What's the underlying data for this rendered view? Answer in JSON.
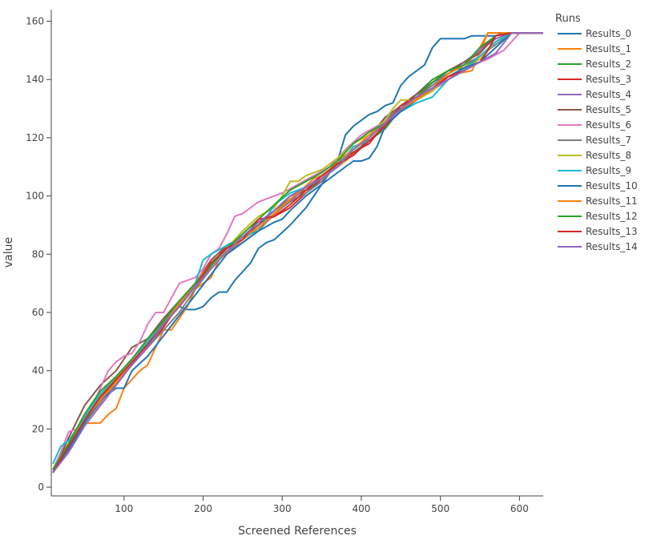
{
  "chart_data": {
    "type": "line",
    "title": "",
    "xlabel": "Screened References",
    "ylabel": "value",
    "xlim": [
      8,
      630
    ],
    "ylim": [
      -3,
      164
    ],
    "xticks": [
      100,
      200,
      300,
      400,
      500,
      600
    ],
    "yticks": [
      0,
      20,
      40,
      60,
      80,
      100,
      120,
      140,
      160
    ],
    "grid": false,
    "legend": {
      "title": "Runs",
      "placement": "right"
    },
    "series": [
      {
        "name": "Results_0",
        "color": "#1f77b4",
        "x": [
          10,
          30,
          50,
          70,
          90,
          110,
          130,
          150,
          170,
          180,
          190,
          200,
          210,
          220,
          230,
          240,
          260,
          270,
          280,
          290,
          310,
          330,
          350,
          370,
          380,
          390,
          410,
          420,
          430,
          440,
          450,
          460,
          470,
          480,
          490,
          500,
          520,
          530,
          540,
          550,
          560,
          570,
          580,
          600,
          630
        ],
        "y": [
          6,
          15,
          23,
          31,
          37,
          42,
          50,
          57,
          62,
          61,
          61,
          62,
          65,
          67,
          67,
          71,
          77,
          82,
          84,
          85,
          90,
          96,
          104,
          112,
          121,
          124,
          128,
          129,
          131,
          132,
          138,
          141,
          143,
          145,
          151,
          154,
          154,
          154,
          155,
          155,
          155,
          155,
          156,
          156,
          156
        ]
      },
      {
        "name": "Results_1",
        "color": "#ff7f0e",
        "x": [
          10,
          20,
          30,
          40,
          50,
          60,
          70,
          80,
          90,
          100,
          110,
          120,
          130,
          140,
          150,
          160,
          170,
          180,
          190,
          200,
          210,
          220,
          240,
          260,
          280,
          300,
          320,
          340,
          360,
          380,
          400,
          420,
          440,
          460,
          480,
          500,
          520,
          540,
          560,
          580,
          600,
          630
        ],
        "y": [
          6,
          10,
          15,
          18,
          22,
          22,
          22,
          25,
          27,
          34,
          37,
          40,
          42,
          48,
          54,
          54,
          58,
          62,
          68,
          70,
          72,
          78,
          83,
          87,
          91,
          96,
          101,
          106,
          108,
          112,
          117,
          121,
          127,
          132,
          135,
          138,
          142,
          143,
          156,
          156,
          156,
          156
        ]
      },
      {
        "name": "Results_2",
        "color": "#2ca02c",
        "x": [
          10,
          30,
          50,
          70,
          90,
          110,
          130,
          150,
          170,
          190,
          210,
          230,
          250,
          270,
          290,
          310,
          330,
          350,
          370,
          390,
          410,
          430,
          450,
          470,
          490,
          510,
          530,
          550,
          570,
          590,
          630
        ],
        "y": [
          6,
          14,
          22,
          30,
          37,
          43,
          49,
          56,
          62,
          69,
          76,
          83,
          86,
          90,
          95,
          99,
          102,
          106,
          112,
          115,
          119,
          123,
          130,
          135,
          140,
          143,
          144,
          148,
          153,
          156,
          156
        ]
      },
      {
        "name": "Results_3",
        "color": "#d62728",
        "x": [
          10,
          30,
          50,
          70,
          90,
          110,
          130,
          150,
          170,
          190,
          210,
          230,
          250,
          270,
          290,
          310,
          330,
          350,
          370,
          390,
          410,
          430,
          450,
          470,
          490,
          510,
          530,
          550,
          570,
          590,
          630
        ],
        "y": [
          5,
          14,
          23,
          31,
          37,
          42,
          48,
          55,
          63,
          70,
          76,
          83,
          86,
          91,
          93,
          96,
          101,
          106,
          111,
          115,
          118,
          125,
          130,
          134,
          138,
          142,
          145,
          150,
          155,
          156,
          156
        ]
      },
      {
        "name": "Results_4",
        "color": "#9467bd",
        "x": [
          10,
          30,
          50,
          70,
          90,
          110,
          130,
          150,
          170,
          190,
          210,
          230,
          250,
          270,
          290,
          310,
          330,
          350,
          370,
          390,
          410,
          430,
          450,
          470,
          490,
          510,
          530,
          550,
          570,
          590,
          630
        ],
        "y": [
          6,
          13,
          23,
          30,
          35,
          43,
          49,
          56,
          62,
          69,
          77,
          82,
          86,
          89,
          94,
          98,
          103,
          107,
          111,
          116,
          120,
          125,
          131,
          135,
          139,
          142,
          146,
          150,
          154,
          156,
          156
        ]
      },
      {
        "name": "Results_5",
        "color": "#8c564b",
        "x": [
          10,
          30,
          50,
          70,
          90,
          110,
          130,
          150,
          170,
          190,
          210,
          230,
          250,
          270,
          290,
          310,
          330,
          350,
          370,
          390,
          410,
          430,
          450,
          470,
          490,
          510,
          530,
          550,
          570,
          590,
          630
        ],
        "y": [
          5,
          17,
          28,
          35,
          40,
          48,
          51,
          58,
          64,
          70,
          78,
          83,
          86,
          90,
          95,
          100,
          102,
          105,
          111,
          114,
          120,
          127,
          131,
          135,
          139,
          143,
          146,
          149,
          155,
          156,
          156
        ]
      },
      {
        "name": "Results_6",
        "color": "#e377c2",
        "x": [
          10,
          20,
          30,
          40,
          50,
          60,
          70,
          80,
          90,
          100,
          110,
          120,
          130,
          140,
          150,
          160,
          170,
          180,
          190,
          200,
          210,
          220,
          230,
          240,
          250,
          260,
          270,
          280,
          290,
          300,
          320,
          340,
          360,
          380,
          400,
          420,
          440,
          460,
          480,
          500,
          520,
          540,
          560,
          580,
          600,
          630
        ],
        "y": [
          6,
          12,
          19,
          20,
          23,
          28,
          34,
          40,
          43,
          45,
          46,
          50,
          56,
          60,
          60,
          65,
          70,
          71,
          72,
          75,
          80,
          82,
          87,
          93,
          94,
          96,
          98,
          99,
          100,
          101,
          104,
          107,
          110,
          116,
          121,
          124,
          127,
          131,
          135,
          138,
          142,
          145,
          147,
          150,
          156,
          156
        ]
      },
      {
        "name": "Results_7",
        "color": "#7f7f7f",
        "x": [
          10,
          30,
          50,
          70,
          90,
          110,
          130,
          150,
          170,
          190,
          210,
          230,
          250,
          270,
          290,
          310,
          330,
          350,
          370,
          390,
          410,
          430,
          450,
          470,
          490,
          510,
          530,
          550,
          570,
          590,
          630
        ],
        "y": [
          5,
          14,
          22,
          29,
          36,
          42,
          48,
          54,
          60,
          68,
          75,
          81,
          84,
          88,
          94,
          98,
          101,
          105,
          111,
          116,
          120,
          126,
          131,
          134,
          138,
          142,
          145,
          148,
          152,
          156,
          156
        ]
      },
      {
        "name": "Results_8",
        "color": "#bcbd22",
        "x": [
          10,
          30,
          50,
          70,
          90,
          110,
          130,
          150,
          170,
          190,
          210,
          230,
          250,
          270,
          290,
          300,
          310,
          320,
          330,
          350,
          370,
          390,
          410,
          430,
          440,
          450,
          470,
          490,
          510,
          530,
          550,
          570,
          590,
          630
        ],
        "y": [
          6,
          15,
          24,
          31,
          38,
          44,
          50,
          57,
          63,
          70,
          76,
          82,
          88,
          93,
          96,
          100,
          105,
          105,
          107,
          109,
          113,
          118,
          121,
          126,
          130,
          133,
          133,
          136,
          141,
          144,
          147,
          153,
          156,
          156
        ]
      },
      {
        "name": "Results_9",
        "color": "#17becf",
        "x": [
          10,
          20,
          30,
          50,
          70,
          90,
          110,
          130,
          150,
          170,
          190,
          200,
          210,
          230,
          250,
          270,
          290,
          310,
          330,
          350,
          370,
          390,
          410,
          430,
          450,
          470,
          490,
          510,
          530,
          550,
          570,
          590,
          630
        ],
        "y": [
          8,
          14,
          16,
          24,
          32,
          38,
          44,
          50,
          57,
          64,
          70,
          78,
          80,
          83,
          86,
          88,
          97,
          101,
          103,
          106,
          110,
          117,
          119,
          124,
          129,
          132,
          134,
          140,
          143,
          148,
          153,
          156,
          156
        ]
      },
      {
        "name": "Results_10",
        "color": "#1f77b4",
        "x": [
          10,
          30,
          50,
          70,
          90,
          100,
          110,
          130,
          150,
          170,
          190,
          210,
          230,
          250,
          270,
          290,
          300,
          310,
          330,
          350,
          370,
          390,
          400,
          410,
          420,
          430,
          450,
          470,
          490,
          510,
          530,
          550,
          570,
          590,
          630
        ],
        "y": [
          5,
          13,
          22,
          30,
          34,
          34,
          40,
          45,
          52,
          59,
          66,
          73,
          80,
          84,
          88,
          91,
          92,
          95,
          100,
          104,
          108,
          112,
          112,
          113,
          117,
          124,
          129,
          133,
          137,
          141,
          144,
          146,
          151,
          156,
          156
        ]
      },
      {
        "name": "Results_11",
        "color": "#ff7f0e",
        "x": [
          10,
          30,
          50,
          70,
          90,
          110,
          130,
          150,
          170,
          190,
          210,
          230,
          250,
          270,
          290,
          310,
          330,
          350,
          370,
          390,
          410,
          430,
          450,
          470,
          490,
          510,
          530,
          550,
          560,
          570,
          590,
          630
        ],
        "y": [
          6,
          14,
          23,
          30,
          36,
          43,
          49,
          56,
          63,
          70,
          77,
          82,
          86,
          89,
          94,
          99,
          103,
          106,
          112,
          116,
          121,
          125,
          130,
          133,
          137,
          142,
          145,
          151,
          156,
          156,
          156,
          156
        ]
      },
      {
        "name": "Results_12",
        "color": "#2ca02c",
        "x": [
          10,
          30,
          50,
          70,
          90,
          110,
          130,
          150,
          170,
          190,
          210,
          230,
          250,
          270,
          290,
          310,
          330,
          350,
          370,
          390,
          410,
          430,
          450,
          470,
          490,
          510,
          530,
          550,
          570,
          590,
          630
        ],
        "y": [
          6,
          15,
          25,
          33,
          38,
          44,
          51,
          57,
          64,
          70,
          76,
          82,
          87,
          92,
          97,
          102,
          105,
          108,
          112,
          118,
          122,
          125,
          130,
          134,
          139,
          143,
          145,
          151,
          155,
          156,
          156
        ]
      },
      {
        "name": "Results_13",
        "color": "#d62728",
        "x": [
          10,
          30,
          50,
          70,
          90,
          110,
          130,
          150,
          170,
          190,
          210,
          230,
          250,
          270,
          290,
          310,
          330,
          350,
          370,
          390,
          410,
          430,
          450,
          470,
          490,
          510,
          530,
          550,
          560,
          570,
          590,
          630
        ],
        "y": [
          5,
          14,
          23,
          31,
          37,
          43,
          49,
          56,
          62,
          69,
          77,
          82,
          85,
          92,
          93,
          97,
          102,
          107,
          111,
          114,
          119,
          124,
          131,
          134,
          137,
          141,
          143,
          146,
          150,
          155,
          156,
          156
        ]
      },
      {
        "name": "Results_14",
        "color": "#9467bd",
        "x": [
          10,
          30,
          50,
          70,
          90,
          110,
          130,
          150,
          170,
          190,
          210,
          230,
          250,
          270,
          290,
          310,
          330,
          350,
          370,
          390,
          410,
          430,
          450,
          470,
          490,
          510,
          530,
          550,
          570,
          590,
          630
        ],
        "y": [
          5,
          12,
          21,
          28,
          35,
          42,
          48,
          56,
          62,
          69,
          75,
          81,
          86,
          91,
          95,
          100,
          103,
          106,
          110,
          116,
          120,
          125,
          130,
          134,
          137,
          140,
          143,
          146,
          149,
          156,
          156
        ]
      }
    ]
  }
}
